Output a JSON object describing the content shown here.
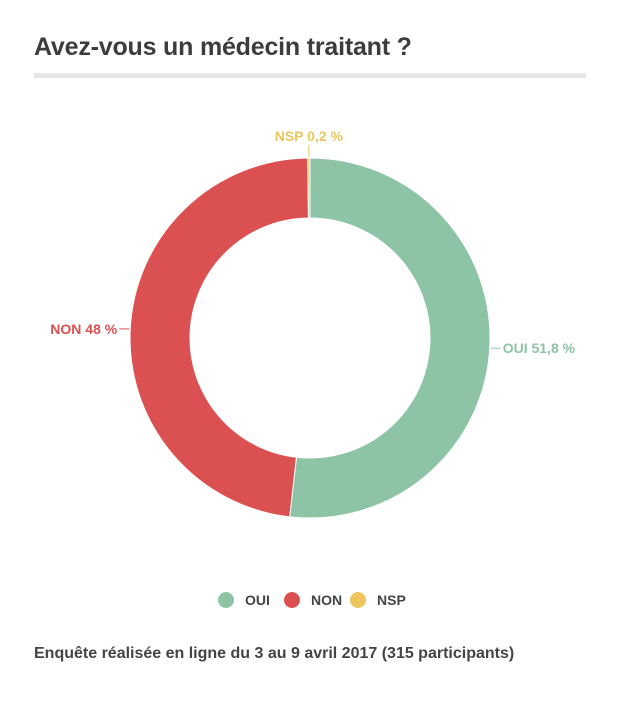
{
  "title": "Avez-vous un médecin traitant ?",
  "footnote": "Enquête réalisée en ligne du 3 au 9 avril 2017 (315 participants)",
  "colors": {
    "OUI": "#8ec4a6",
    "NON": "#db5152",
    "NSP": "#ecc65c"
  },
  "chart_data": {
    "type": "pie",
    "variant": "donut",
    "title": "Avez-vous un médecin traitant ?",
    "categories": [
      "OUI",
      "NON",
      "NSP"
    ],
    "values": [
      51.8,
      48,
      0.2
    ],
    "unit": "%",
    "slice_labels": [
      "OUI 51,8 %",
      "NON 48 %",
      "NSP 0,2 %"
    ],
    "legend": {
      "position": "bottom",
      "entries": [
        "OUI",
        "NON",
        "NSP"
      ]
    }
  }
}
